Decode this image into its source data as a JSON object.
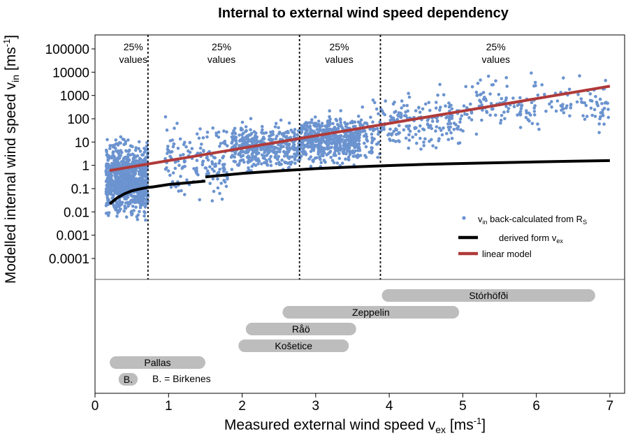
{
  "chart_data": {
    "type": "scatter",
    "title": "Internal to external wind speed dependency",
    "xlabel_main": "Measured external wind speed v",
    "xlabel_sub": "ex",
    "xlabel_unit": " [ms",
    "xlabel_sup": "-1",
    "xlabel_close": "]",
    "ylabel_main": "Modelled internal wind speed v",
    "ylabel_sub": "in",
    "ylabel_unit": " [ms",
    "ylabel_sup": "-1",
    "ylabel_close": "]",
    "xlim": [
      0,
      7.2
    ],
    "ylim_log10": [
      -4.9,
      5.6
    ],
    "y_scale": "log",
    "x_ticks": [
      "0",
      "1",
      "2",
      "3",
      "4",
      "5",
      "6",
      "7"
    ],
    "y_ticks": [
      "0.0001",
      "0.001",
      "0.01",
      "0.1",
      "1",
      "10",
      "100",
      "1000",
      "10000",
      "100000"
    ],
    "colors": {
      "scatter": "#6b93cf",
      "derived": "#000000",
      "linear": "#b03a3a",
      "bar": "#bdbdbd",
      "divider": "#000000"
    },
    "quartile_dividers_x": [
      0.72,
      2.78,
      3.88
    ],
    "quartile_label_line1": "25%",
    "quartile_label_line2": "values",
    "quartile_label_x": [
      0.52,
      1.72,
      3.32,
      5.45
    ],
    "scatter_clusters": [
      {
        "x_range": [
          0.15,
          0.72
        ],
        "y_log_center": -0.6,
        "y_log_spread": 1.25,
        "count": 900
      },
      {
        "x_range": [
          0.95,
          1.8
        ],
        "y_log_center": 0.2,
        "y_log_spread": 1.5,
        "count": 160
      },
      {
        "x_range": [
          1.85,
          2.78
        ],
        "y_log_center": 0.8,
        "y_log_spread": 0.75,
        "count": 450
      },
      {
        "x_range": [
          2.78,
          3.6
        ],
        "y_log_center": 1.1,
        "y_log_spread": 0.8,
        "count": 550
      },
      {
        "x_range": [
          3.6,
          3.88
        ],
        "y_log_center": 1.3,
        "y_log_spread": 1.0,
        "count": 60
      },
      {
        "x_range": [
          3.88,
          5.0
        ],
        "y_log_center": 1.9,
        "y_log_spread": 1.0,
        "count": 180
      },
      {
        "x_range": [
          5.0,
          7.0
        ],
        "y_log_center": 2.6,
        "y_log_spread": 1.0,
        "count": 180
      }
    ],
    "series": [
      {
        "name": "derived form v",
        "name_sub": "ex",
        "x": [
          0.2,
          0.3,
          0.4,
          0.5,
          0.6,
          0.7,
          0.8,
          1.0,
          1.2,
          1.5,
          1.5,
          2.0,
          2.5,
          3.0,
          3.5,
          4.0,
          4.5,
          5.0,
          5.5,
          6.0,
          6.5,
          7.0
        ],
        "y": [
          0.022,
          0.04,
          0.06,
          0.08,
          0.095,
          0.11,
          0.12,
          0.15,
          0.17,
          0.21,
          0.32,
          0.45,
          0.58,
          0.72,
          0.85,
          0.98,
          1.1,
          1.2,
          1.3,
          1.4,
          1.5,
          1.6
        ]
      },
      {
        "name": "linear model",
        "x": [
          0.2,
          7.0
        ],
        "y": [
          0.6,
          2500
        ]
      }
    ],
    "legend": {
      "placement": "right",
      "scatter_v": "v",
      "scatter_sub": "in",
      "scatter_text": " back-calculated from R",
      "scatter_sub2": "S"
    },
    "station_ranges": [
      {
        "name": "Stórhöfði",
        "x_range": [
          3.9,
          6.8
        ]
      },
      {
        "name": "Zeppelin",
        "x_range": [
          2.55,
          4.95
        ]
      },
      {
        "name": "Råö",
        "x_range": [
          2.05,
          3.55
        ]
      },
      {
        "name": "Košetice",
        "x_range": [
          1.95,
          3.45
        ]
      },
      {
        "name": "Pallas",
        "x_range": [
          0.2,
          1.5
        ]
      },
      {
        "name": "B.",
        "x_range": [
          0.32,
          0.58
        ]
      }
    ],
    "birkenes_note": "B. = Birkenes"
  }
}
